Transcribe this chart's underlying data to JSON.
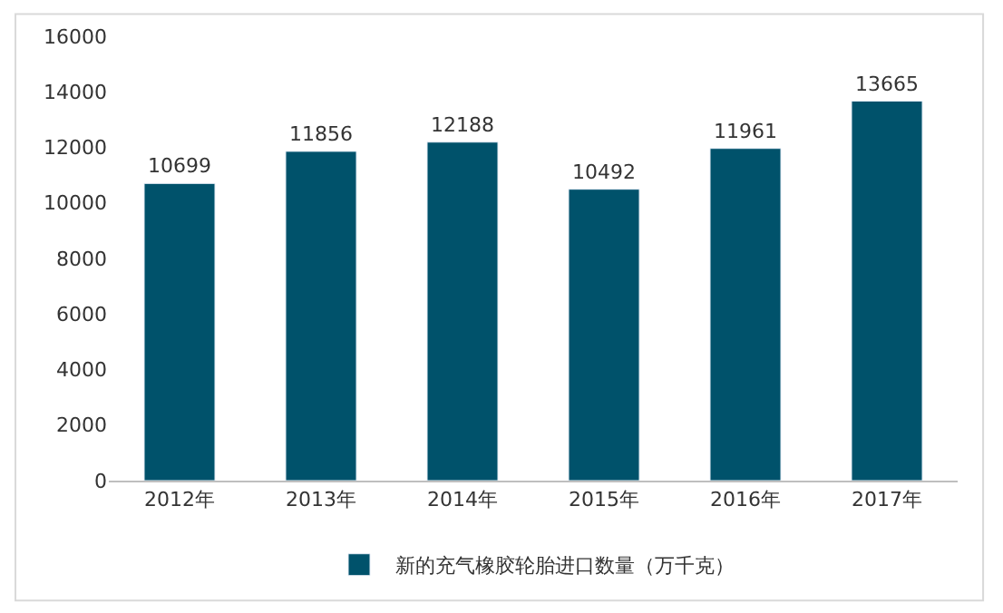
{
  "chart_data": {
    "type": "bar",
    "categories": [
      "2012年",
      "2013年",
      "2014年",
      "2015年",
      "2016年",
      "2017年"
    ],
    "series": [
      {
        "name": "新的充气橡胶轮胎进口数量（万千克）",
        "color": "#00526b",
        "values": [
          10699,
          11856,
          12188,
          10492,
          11961,
          13665
        ]
      }
    ],
    "ylim": [
      0,
      16000
    ],
    "yticks": [
      0,
      2000,
      4000,
      6000,
      8000,
      10000,
      12000,
      14000,
      16000
    ],
    "legend": "bottom",
    "data_labels": true
  }
}
